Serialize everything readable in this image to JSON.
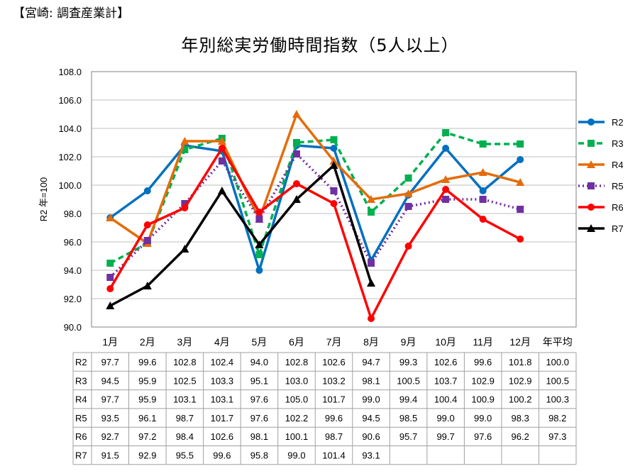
{
  "header": "【宮崎: 調査産業計】",
  "chart_data": {
    "type": "line",
    "title": "年別総実労働時間指数（5人以上）",
    "ylabel": "R2 年=100",
    "xlabel": "",
    "ylim": [
      90,
      108
    ],
    "yticks": [
      "90.0",
      "92.0",
      "94.0",
      "96.0",
      "98.0",
      "100.0",
      "102.0",
      "104.0",
      "106.0",
      "108.0"
    ],
    "categories": [
      "1月",
      "2月",
      "3月",
      "4月",
      "5月",
      "6月",
      "7月",
      "8月",
      "9月",
      "10月",
      "11月",
      "12月",
      "年平均"
    ],
    "grid": true,
    "legend": "right",
    "series": [
      {
        "name": "R2",
        "color": "#0070C0",
        "marker": "circle",
        "dash": "solid",
        "values": [
          97.7,
          99.6,
          102.8,
          102.4,
          94.0,
          102.8,
          102.6,
          94.7,
          99.3,
          102.6,
          99.6,
          101.8,
          100.0
        ]
      },
      {
        "name": "R3",
        "color": "#00B050",
        "marker": "square",
        "dash": "dashed",
        "values": [
          94.5,
          95.9,
          102.5,
          103.3,
          95.1,
          103.0,
          103.2,
          98.1,
          100.5,
          103.7,
          102.9,
          102.9,
          100.5
        ]
      },
      {
        "name": "R4",
        "color": "#E46C0A",
        "marker": "triangle",
        "dash": "solid",
        "values": [
          97.7,
          95.9,
          103.1,
          103.1,
          97.6,
          105.0,
          101.7,
          99.0,
          99.4,
          100.4,
          100.9,
          100.2,
          100.3
        ]
      },
      {
        "name": "R5",
        "color": "#7030A0",
        "marker": "square",
        "dash": "dotted",
        "values": [
          93.5,
          96.1,
          98.7,
          101.7,
          97.6,
          102.2,
          99.6,
          94.5,
          98.5,
          99.0,
          99.0,
          98.3,
          98.2
        ]
      },
      {
        "name": "R6",
        "color": "#FF0000",
        "marker": "circle",
        "dash": "solid",
        "values": [
          92.7,
          97.2,
          98.4,
          102.6,
          98.1,
          100.1,
          98.7,
          90.6,
          95.7,
          99.7,
          97.6,
          96.2,
          97.3
        ]
      },
      {
        "name": "R7",
        "color": "#000000",
        "marker": "triangle",
        "dash": "solid",
        "values": [
          91.5,
          92.9,
          95.5,
          99.6,
          95.8,
          99.0,
          101.4,
          93.1,
          null,
          null,
          null,
          null,
          null
        ]
      }
    ]
  }
}
